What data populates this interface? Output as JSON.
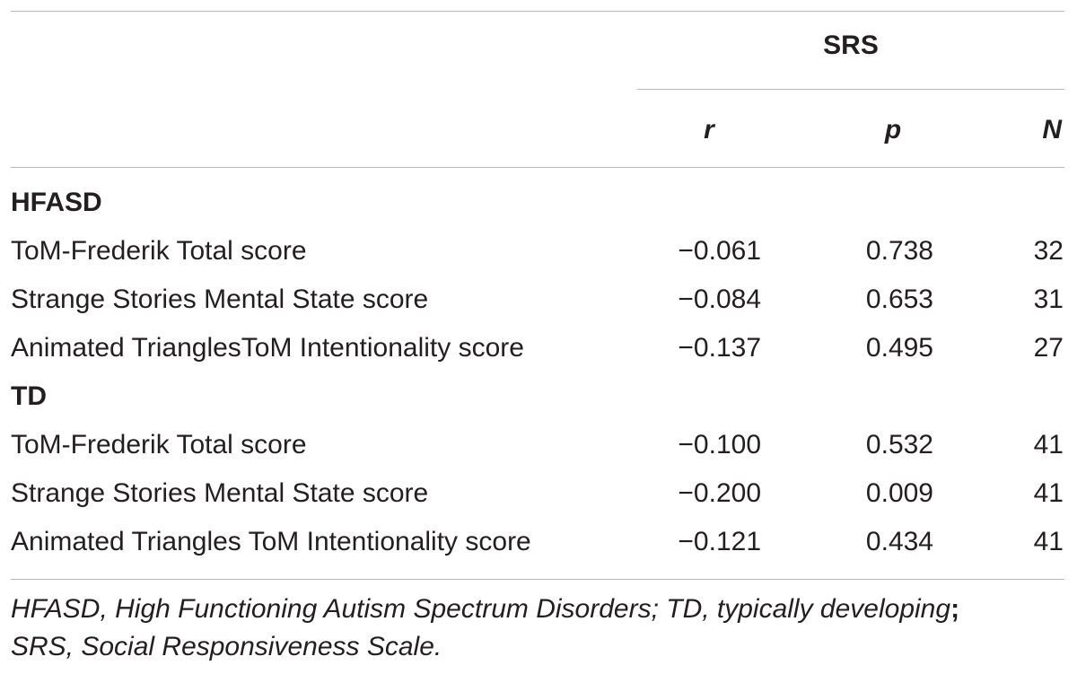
{
  "table": {
    "group_header": "SRS",
    "columns": [
      "r",
      "p",
      "N"
    ],
    "sections": [
      {
        "label": "HFASD",
        "rows": [
          {
            "measure": "ToM-Frederik Total score",
            "r": "−0.061",
            "p": "0.738",
            "N": "32"
          },
          {
            "measure": "Strange Stories Mental State score",
            "r": "−0.084",
            "p": "0.653",
            "N": "31"
          },
          {
            "measure": "Animated TrianglesToM Intentionality score",
            "r": "−0.137",
            "p": "0.495",
            "N": "27"
          }
        ]
      },
      {
        "label": "TD",
        "rows": [
          {
            "measure": "ToM-Frederik Total score",
            "r": "−0.100",
            "p": "0.532",
            "N": "41"
          },
          {
            "measure": "Strange Stories Mental State score",
            "r": "−0.200",
            "p": "0.009",
            "N": "41"
          },
          {
            "measure": "Animated Triangles ToM Intentionality score",
            "r": "−0.121",
            "p": "0.434",
            "N": "41"
          }
        ]
      }
    ]
  },
  "footnote": {
    "line1": "HFASD, High Functioning Autism Spectrum Disorders; TD, typically developing",
    "sep": ";",
    "line2": "SRS, Social Responsiveness Scale."
  }
}
